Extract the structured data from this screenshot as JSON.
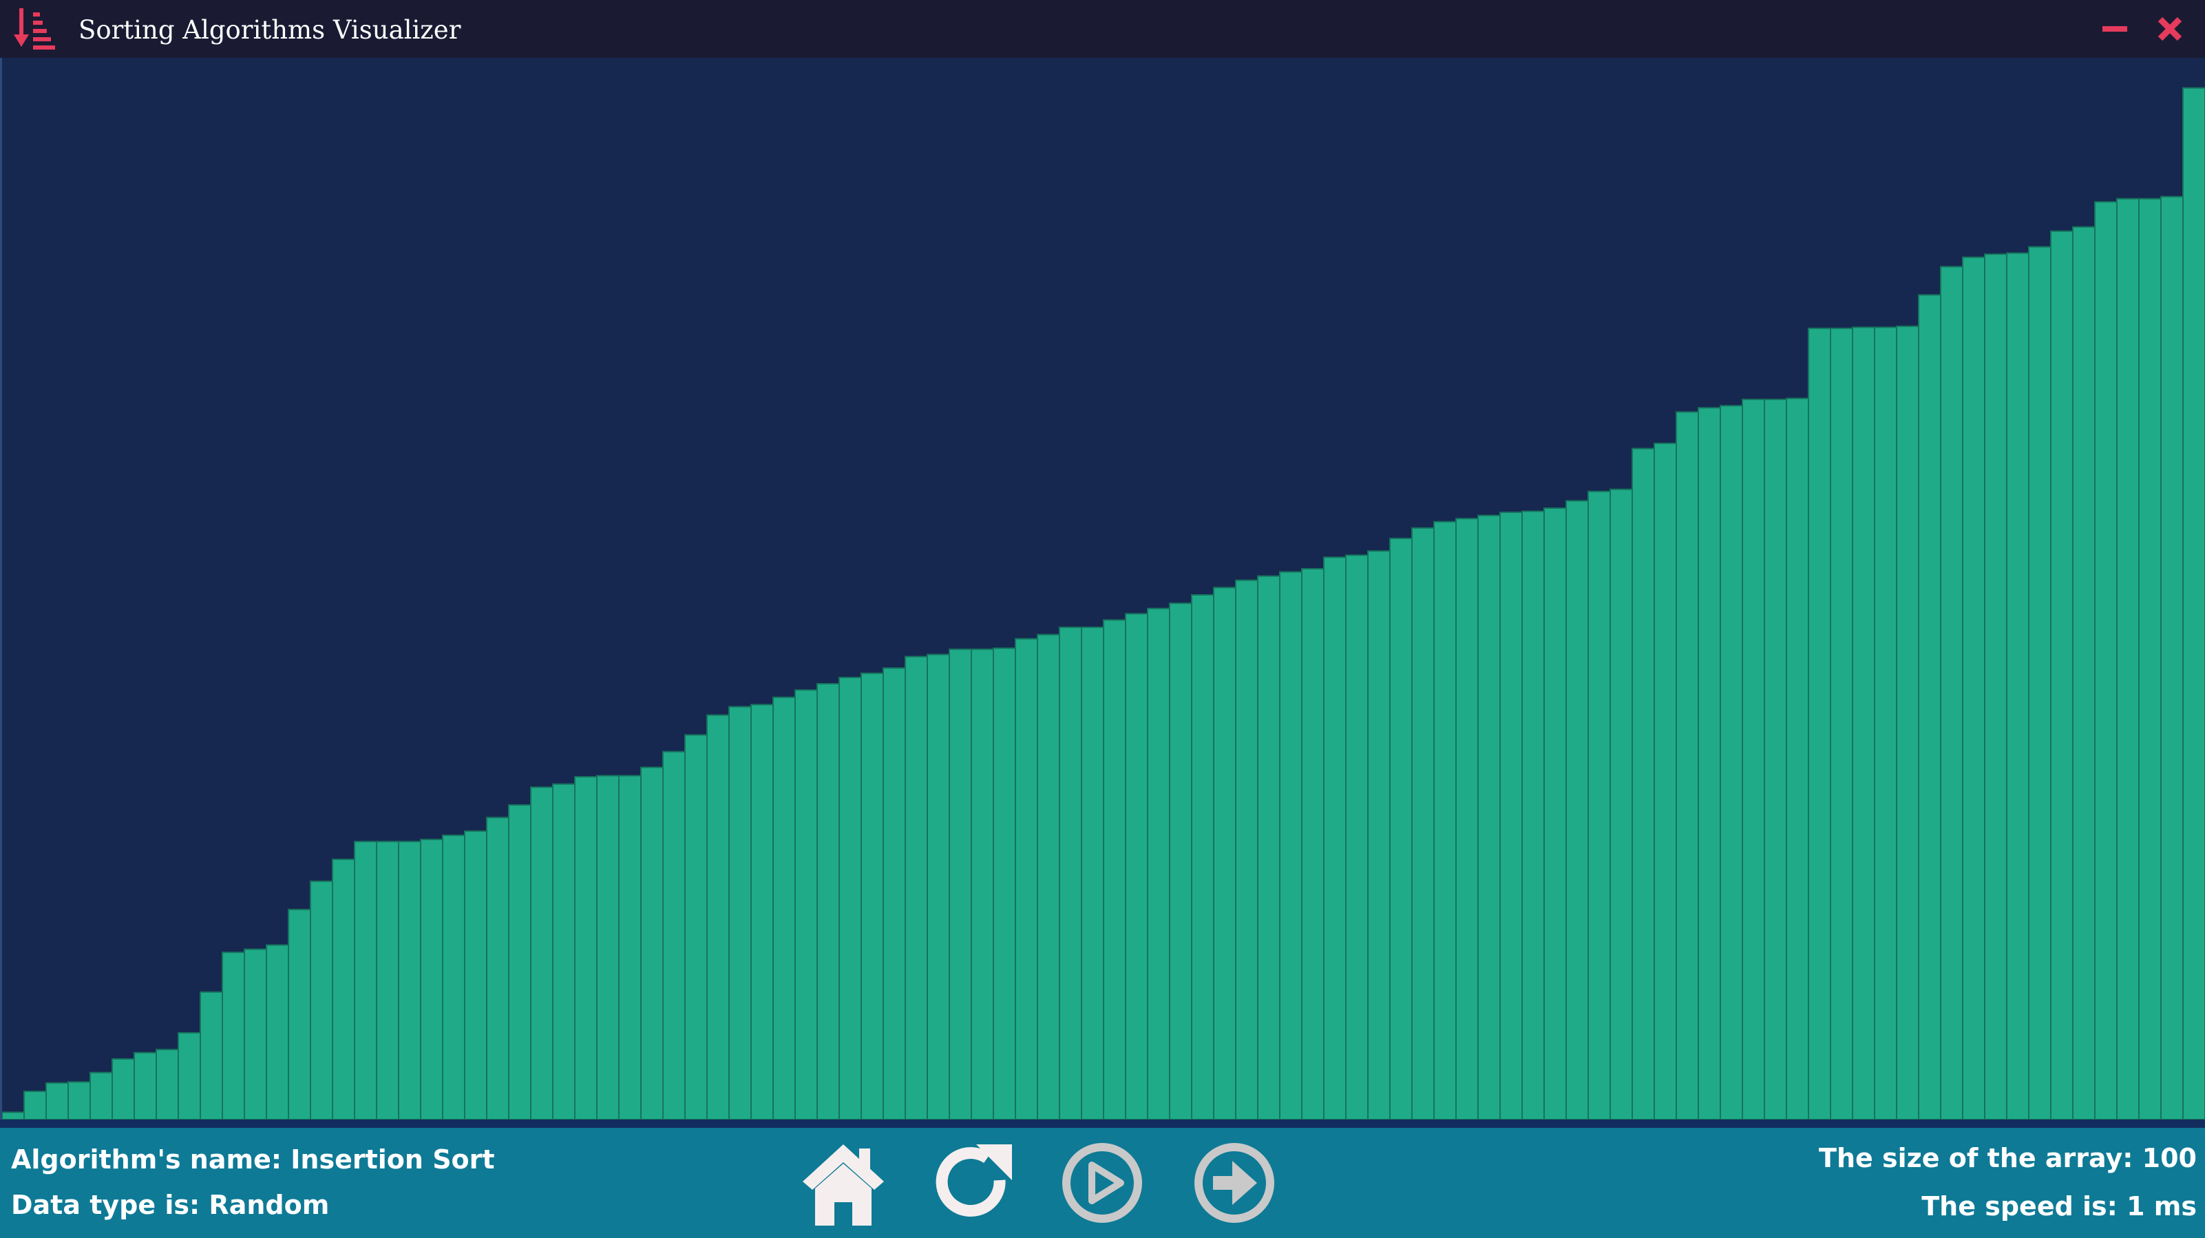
{
  "app": {
    "title": "Sorting Algorithms Visualizer",
    "icon": "sort-descending-icon"
  },
  "window_controls": [
    {
      "name": "minimize",
      "icon": "minus-icon"
    },
    {
      "name": "close",
      "icon": "close-icon"
    }
  ],
  "status": {
    "algorithm_text": "Algorithm's name: Insertion Sort",
    "data_type_text": "Data type is: Random",
    "array_size_text": "The size of the array: 100",
    "speed_text": "The speed is: 1 ms"
  },
  "controls": [
    {
      "name": "home",
      "icon": "home-icon"
    },
    {
      "name": "reset",
      "icon": "refresh-icon"
    },
    {
      "name": "play",
      "icon": "play-circle-icon"
    },
    {
      "name": "next-step",
      "icon": "arrow-right-circle-icon"
    }
  ],
  "colors": {
    "titlebar": "#1a1b33",
    "chart_background": "#16284f",
    "bar": "#1fab88",
    "bar_outline": "#17735e",
    "bottom_bar": "#0e7a96",
    "accent": "#e63b5c",
    "control_icon": "#f5eeee",
    "control_icon_disabled": "#c9c9c9"
  },
  "chart_data": {
    "type": "bar",
    "description_count": 100,
    "ylim": [
      0,
      1
    ],
    "values": [
      0.007,
      0.027,
      0.035,
      0.036,
      0.045,
      0.058,
      0.064,
      0.067,
      0.083,
      0.122,
      0.16,
      0.163,
      0.167,
      0.201,
      0.228,
      0.249,
      0.266,
      0.266,
      0.266,
      0.268,
      0.272,
      0.276,
      0.289,
      0.301,
      0.318,
      0.321,
      0.328,
      0.329,
      0.329,
      0.337,
      0.352,
      0.368,
      0.387,
      0.395,
      0.397,
      0.404,
      0.411,
      0.417,
      0.423,
      0.427,
      0.432,
      0.443,
      0.445,
      0.45,
      0.45,
      0.451,
      0.46,
      0.464,
      0.471,
      0.471,
      0.478,
      0.484,
      0.489,
      0.494,
      0.502,
      0.509,
      0.516,
      0.52,
      0.524,
      0.527,
      0.538,
      0.54,
      0.544,
      0.556,
      0.566,
      0.572,
      0.575,
      0.578,
      0.581,
      0.582,
      0.585,
      0.592,
      0.601,
      0.603,
      0.642,
      0.647,
      0.677,
      0.681,
      0.683,
      0.689,
      0.689,
      0.69,
      0.757,
      0.757,
      0.758,
      0.758,
      0.759,
      0.789,
      0.816,
      0.825,
      0.828,
      0.829,
      0.835,
      0.85,
      0.854,
      0.878,
      0.881,
      0.881,
      0.883,
      0.987
    ]
  }
}
